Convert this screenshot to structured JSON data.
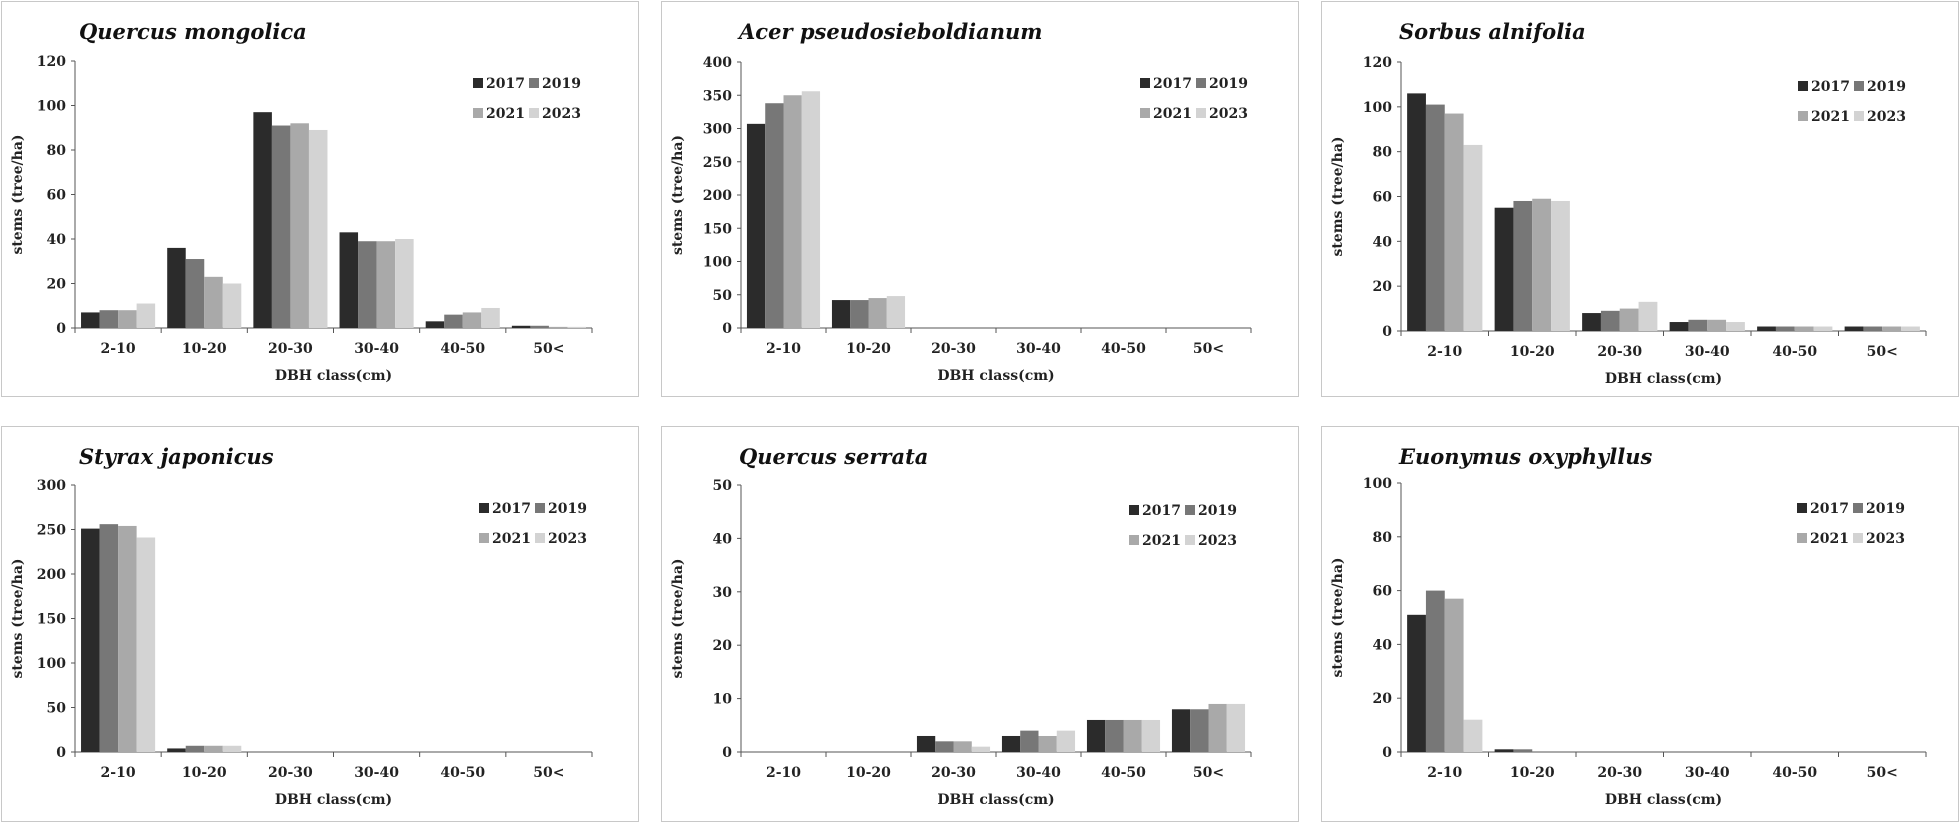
{
  "chart_data": [
    {
      "type": "bar",
      "title": "Quercus mongolica",
      "xlabel": "DBH class(cm)",
      "ylabel": "stems (tree/ha)",
      "categories": [
        "2-10",
        "10-20",
        "20-30",
        "30-40",
        "40-50",
        "50<"
      ],
      "ylim": [
        0,
        120
      ],
      "yticks": [
        0,
        20,
        40,
        60,
        80,
        100,
        120
      ],
      "legend_position": "top-right",
      "series": [
        {
          "name": "2017",
          "color": "#2b2b2b",
          "values": [
            7,
            36,
            97,
            43,
            3,
            1
          ]
        },
        {
          "name": "2019",
          "color": "#777777",
          "values": [
            8,
            31,
            91,
            39,
            6,
            1
          ]
        },
        {
          "name": "2021",
          "color": "#a9a9a9",
          "values": [
            8,
            23,
            92,
            39,
            7,
            0.5
          ]
        },
        {
          "name": "2023",
          "color": "#d3d3d3",
          "values": [
            11,
            20,
            89,
            40,
            9,
            0.5
          ]
        }
      ]
    },
    {
      "type": "bar",
      "title": "Acer pseudosieboldianum",
      "xlabel": "DBH class(cm)",
      "ylabel": "stems (tree/ha)",
      "categories": [
        "2-10",
        "10-20",
        "20-30",
        "30-40",
        "40-50",
        "50<"
      ],
      "ylim": [
        0,
        400
      ],
      "yticks": [
        0,
        50,
        100,
        150,
        200,
        250,
        300,
        350,
        400
      ],
      "legend_position": "top-right",
      "series": [
        {
          "name": "2017",
          "color": "#2b2b2b",
          "values": [
            307,
            42,
            0,
            0,
            0,
            0
          ]
        },
        {
          "name": "2019",
          "color": "#777777",
          "values": [
            338,
            42,
            0,
            0,
            0,
            0
          ]
        },
        {
          "name": "2021",
          "color": "#a9a9a9",
          "values": [
            350,
            45,
            0,
            0,
            0,
            0
          ]
        },
        {
          "name": "2023",
          "color": "#d3d3d3",
          "values": [
            356,
            48,
            0,
            0,
            0,
            0
          ]
        }
      ]
    },
    {
      "type": "bar",
      "title": "Sorbus alnifolia",
      "xlabel": "DBH class(cm)",
      "ylabel": "stems (tree/ha)",
      "categories": [
        "2-10",
        "10-20",
        "20-30",
        "30-40",
        "40-50",
        "50<"
      ],
      "ylim": [
        0,
        120
      ],
      "yticks": [
        0,
        20,
        40,
        60,
        80,
        100,
        120
      ],
      "legend_position": "top-right",
      "series": [
        {
          "name": "2017",
          "color": "#2b2b2b",
          "values": [
            106,
            55,
            8,
            4,
            2,
            2
          ]
        },
        {
          "name": "2019",
          "color": "#777777",
          "values": [
            101,
            58,
            9,
            5,
            2,
            2
          ]
        },
        {
          "name": "2021",
          "color": "#a9a9a9",
          "values": [
            97,
            59,
            10,
            5,
            2,
            2
          ]
        },
        {
          "name": "2023",
          "color": "#d3d3d3",
          "values": [
            83,
            58,
            13,
            4,
            2,
            2
          ]
        }
      ]
    },
    {
      "type": "bar",
      "title": "Styrax japonicus",
      "xlabel": "DBH class(cm)",
      "ylabel": "stems (tree/ha)",
      "categories": [
        "2-10",
        "10-20",
        "20-30",
        "30-40",
        "40-50",
        "50<"
      ],
      "ylim": [
        0,
        300
      ],
      "yticks": [
        0,
        50,
        100,
        150,
        200,
        250,
        300
      ],
      "legend_position": "top-right",
      "series": [
        {
          "name": "2017",
          "color": "#2b2b2b",
          "values": [
            251,
            4,
            0,
            0,
            0,
            0
          ]
        },
        {
          "name": "2019",
          "color": "#777777",
          "values": [
            256,
            7,
            0,
            0,
            0,
            0
          ]
        },
        {
          "name": "2021",
          "color": "#a9a9a9",
          "values": [
            254,
            7,
            0,
            0,
            0,
            0
          ]
        },
        {
          "name": "2023",
          "color": "#d3d3d3",
          "values": [
            241,
            7,
            0,
            0,
            0,
            0
          ]
        }
      ]
    },
    {
      "type": "bar",
      "title": "Quercus serrata",
      "xlabel": "DBH class(cm)",
      "ylabel": "stems (tree/ha)",
      "categories": [
        "2-10",
        "10-20",
        "20-30",
        "30-40",
        "40-50",
        "50<"
      ],
      "ylim": [
        0,
        50
      ],
      "yticks": [
        0,
        10,
        20,
        30,
        40,
        50
      ],
      "legend_position": "top-right",
      "series": [
        {
          "name": "2017",
          "color": "#2b2b2b",
          "values": [
            0,
            0,
            3,
            3,
            6,
            8
          ]
        },
        {
          "name": "2019",
          "color": "#777777",
          "values": [
            0,
            0,
            2,
            4,
            6,
            8
          ]
        },
        {
          "name": "2021",
          "color": "#a9a9a9",
          "values": [
            0,
            0,
            2,
            3,
            6,
            9
          ]
        },
        {
          "name": "2023",
          "color": "#d3d3d3",
          "values": [
            0,
            0,
            1,
            4,
            6,
            9
          ]
        }
      ]
    },
    {
      "type": "bar",
      "title": "Euonymus oxyphyllus",
      "xlabel": "DBH class(cm)",
      "ylabel": "stems (tree/ha)",
      "categories": [
        "2-10",
        "10-20",
        "20-30",
        "30-40",
        "40-50",
        "50<"
      ],
      "ylim": [
        0,
        100
      ],
      "yticks": [
        0,
        20,
        40,
        60,
        80,
        100
      ],
      "legend_position": "top-right",
      "series": [
        {
          "name": "2017",
          "color": "#2b2b2b",
          "values": [
            51,
            1,
            0,
            0,
            0,
            0
          ]
        },
        {
          "name": "2019",
          "color": "#777777",
          "values": [
            60,
            1,
            0,
            0,
            0,
            0
          ]
        },
        {
          "name": "2021",
          "color": "#a9a9a9",
          "values": [
            57,
            0,
            0,
            0,
            0,
            0
          ]
        },
        {
          "name": "2023",
          "color": "#d3d3d3",
          "values": [
            12,
            0,
            0,
            0,
            0,
            0
          ]
        }
      ]
    }
  ]
}
